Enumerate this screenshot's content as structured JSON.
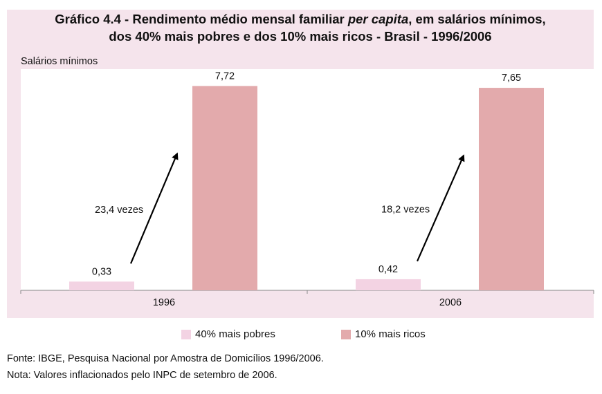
{
  "title": {
    "line1_prefix": "Gráfico 4.4 - Rendimento médio mensal familiar ",
    "line1_italic": "per capita",
    "line1_suffix": ", em salários mínimos,",
    "line2": "dos 40% mais pobres e dos 10% mais ricos - Brasil - 1996/2006"
  },
  "chart_data": {
    "type": "bar",
    "title": "Gráfico 4.4 - Rendimento médio mensal familiar per capita, em salários mínimos, dos 40% mais pobres e dos 10% mais ricos - Brasil - 1996/2006",
    "ylabel": "Salários mínimos",
    "xlabel": "",
    "categories": [
      "1996",
      "2006"
    ],
    "series": [
      {
        "name": "40% mais pobres",
        "values": [
          0.33,
          0.42
        ],
        "labels": [
          "0,33",
          "0,42"
        ],
        "color": "#f3d3e3"
      },
      {
        "name": "10% mais ricos",
        "values": [
          7.72,
          7.65
        ],
        "labels": [
          "7,72",
          "7,65"
        ],
        "color": "#e3aaac"
      }
    ],
    "ylim": [
      0,
      8.2
    ],
    "annotations": [
      {
        "category": "1996",
        "text": "23,4 vezes"
      },
      {
        "category": "2006",
        "text": "18,2 vezes"
      }
    ],
    "grid": false,
    "legend": "bottom"
  },
  "colors": {
    "background": "#f5e4ec",
    "plot": "#ffffff",
    "axis": "#888888"
  },
  "footer": {
    "source": "Fonte: IBGE, Pesquisa Nacional por Amostra de Domicílios 1996/2006.",
    "note": "Nota: Valores inflacionados pelo INPC de setembro de 2006."
  }
}
